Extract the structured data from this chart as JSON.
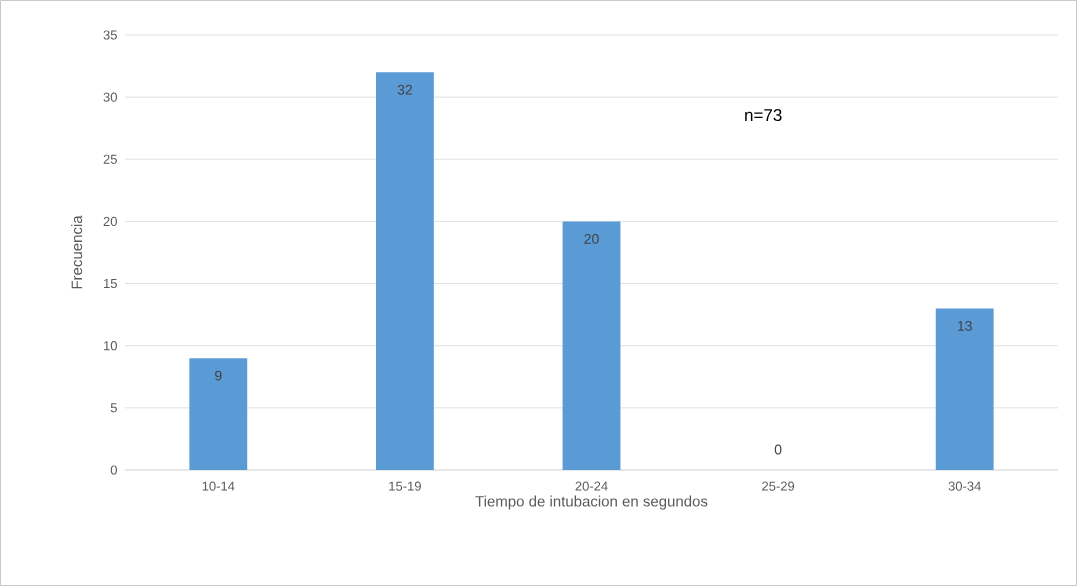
{
  "chart_data": {
    "type": "bar",
    "xlabel": "Tiempo de intubacion en segundos",
    "ylabel": "Frecuencia",
    "categories": [
      "10-14",
      "15-19",
      "20-24",
      "25-29",
      "30-34"
    ],
    "values": [
      9,
      32,
      20,
      0,
      13
    ],
    "color": "#5b9bd5",
    "ylim": [
      0,
      35
    ],
    "yticks": [
      0,
      5,
      10,
      15,
      20,
      25,
      30,
      35
    ],
    "grid": "y",
    "data_labels": true,
    "annotations": [
      "n=73"
    ]
  }
}
